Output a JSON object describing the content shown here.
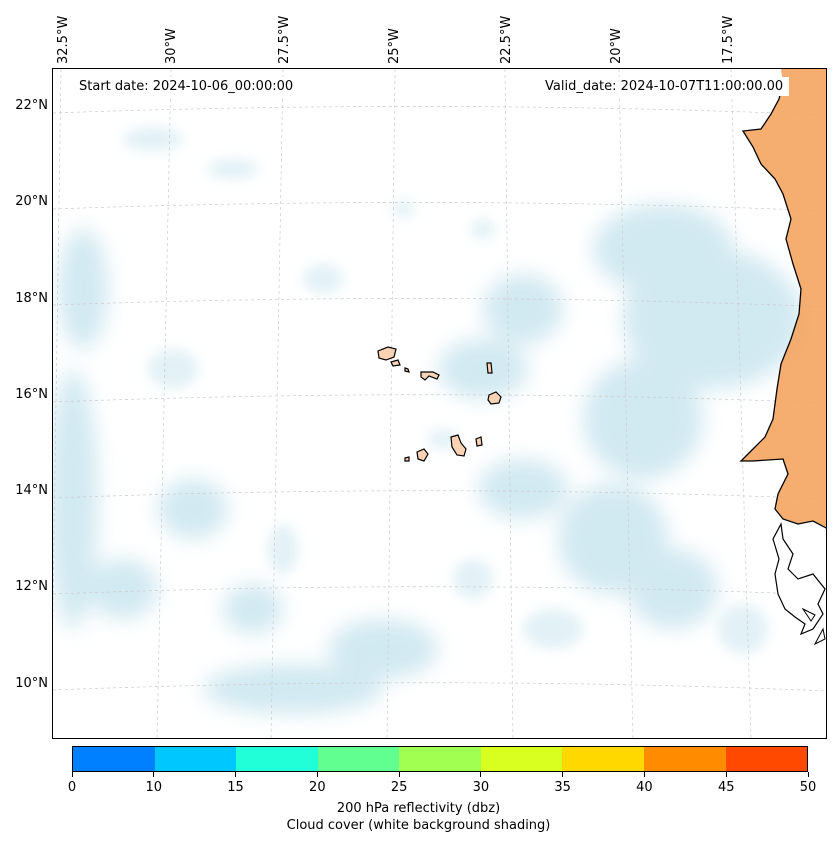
{
  "map": {
    "start_date": "Start date: 2024-10-06_00:00:00",
    "valid_date": "Valid_date: 2024-10-07T11:00:00.00",
    "lon_labels": [
      "32.5°W",
      "30°W",
      "27.5°W",
      "25°W",
      "22.5°W",
      "20°W",
      "17.5°W"
    ],
    "lat_labels": [
      "22°N",
      "20°N",
      "18°N",
      "16°N",
      "14°N",
      "12°N",
      "10°N"
    ],
    "land_color": "#f4a460",
    "cloud_color": "#add8e6",
    "gridline_color": "#cccccc"
  },
  "colorbar": {
    "levels": [
      "0",
      "10",
      "15",
      "20",
      "25",
      "30",
      "35",
      "40",
      "45",
      "50"
    ],
    "colors": [
      "#0080ff",
      "#00c8ff",
      "#20ffd8",
      "#60ff90",
      "#a0ff50",
      "#d8ff20",
      "#ffd800",
      "#ff8c00",
      "#ff4800"
    ],
    "label_line1": "200 hPa reflectivity (dbz)",
    "label_line2": "Cloud cover (white background shading)"
  }
}
